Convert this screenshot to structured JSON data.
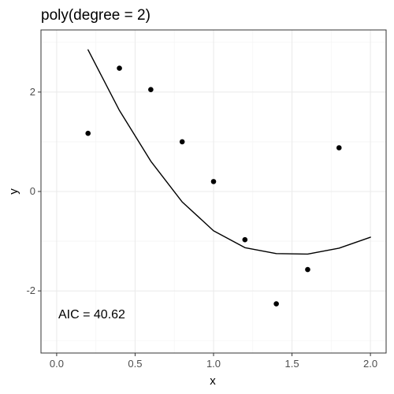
{
  "chart_data": {
    "type": "scatter",
    "title": "poly(degree = 2)",
    "xlabel": "x",
    "ylabel": "y",
    "xlim": [
      -0.1,
      2.1
    ],
    "ylim": [
      -3.25,
      3.25
    ],
    "x_ticks": [
      0.0,
      0.5,
      1.0,
      1.5,
      2.0
    ],
    "x_tick_labels": [
      "0.0",
      "0.5",
      "1.0",
      "1.5",
      "2.0"
    ],
    "y_ticks": [
      -2,
      0,
      2
    ],
    "y_tick_labels": [
      "-2",
      "0",
      "2"
    ],
    "grid": true,
    "series": [
      {
        "type": "scatter",
        "x": [
          0.2,
          0.4,
          0.6,
          0.8,
          1.0,
          1.2,
          1.4,
          1.6,
          1.8,
          2.0
        ],
        "y": [
          1.17,
          2.48,
          2.05,
          1.0,
          0.2,
          -0.97,
          -2.26,
          -1.57,
          0.88,
          null
        ]
      },
      {
        "type": "line",
        "fit": "quadratic",
        "x": [
          0.2,
          0.4,
          0.6,
          0.8,
          1.0,
          1.2,
          1.4,
          1.6,
          1.8,
          2.0
        ],
        "y": [
          2.85,
          1.63,
          0.61,
          -0.21,
          -0.79,
          -1.13,
          -1.25,
          -1.26,
          -1.14,
          -0.92
        ]
      }
    ],
    "annotation": "AIC = 40.62",
    "colors": {
      "panel_border": "#333333",
      "grid_major": "#ebebeb",
      "grid_minor": "#f5f5f5",
      "points": "#000000",
      "line": "#000000"
    }
  }
}
